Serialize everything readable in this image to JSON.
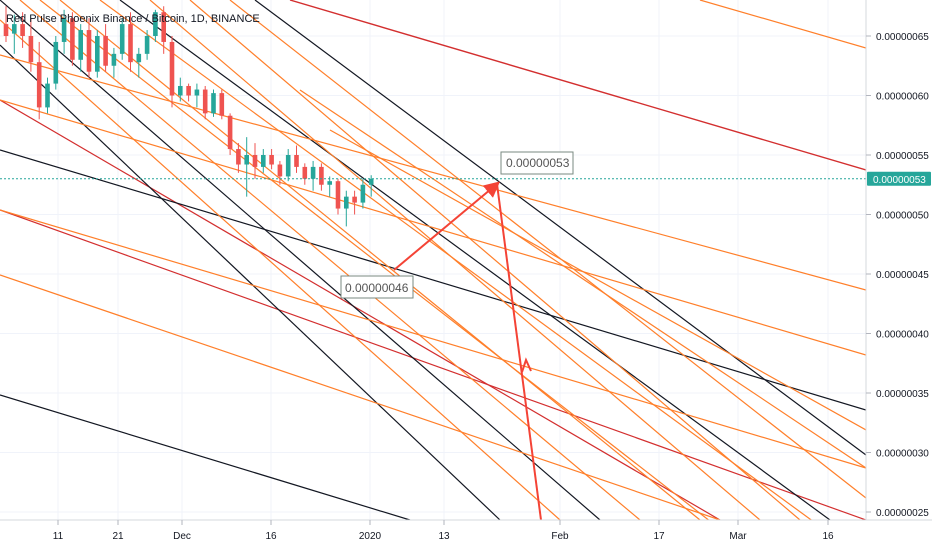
{
  "chart_data": {
    "type": "candlestick",
    "title": "Red Pulse Phoenix Binance / Bitcoin, 1D, BINANCE",
    "y_ticks": [
      "0.00000065",
      "0.00000060",
      "0.00000055",
      "0.00000050",
      "0.00000045",
      "0.00000040",
      "0.00000035",
      "0.00000030",
      "0.00000025"
    ],
    "y_tick_values": [
      65,
      60,
      55,
      50,
      45,
      40,
      35,
      30,
      25
    ],
    "x_ticks": [
      "11",
      "21",
      "Dec",
      "16",
      "2020",
      "13",
      "Feb",
      "17",
      "Mar",
      "16"
    ],
    "ylim": [
      25,
      68
    ],
    "current_price": "0.00000053",
    "current_price_value": 53,
    "annotations": [
      {
        "text": "0.00000053",
        "price": 53
      },
      {
        "text": "0.00000046",
        "price": 46
      }
    ],
    "candles": [
      {
        "o": 66.0,
        "h": 67.5,
        "l": 64.5,
        "c": 65.0,
        "up": false
      },
      {
        "o": 65.2,
        "h": 66.8,
        "l": 63.5,
        "c": 66.0,
        "up": true
      },
      {
        "o": 66.0,
        "h": 67.0,
        "l": 64.0,
        "c": 65.0,
        "up": false
      },
      {
        "o": 65.0,
        "h": 66.5,
        "l": 62.0,
        "c": 62.8,
        "up": false
      },
      {
        "o": 62.8,
        "h": 64.5,
        "l": 58.0,
        "c": 59.0,
        "up": false
      },
      {
        "o": 59.0,
        "h": 61.5,
        "l": 58.5,
        "c": 61.0,
        "up": true
      },
      {
        "o": 61.0,
        "h": 65.0,
        "l": 60.5,
        "c": 64.5,
        "up": true
      },
      {
        "o": 64.5,
        "h": 67.2,
        "l": 63.5,
        "c": 66.5,
        "up": true
      },
      {
        "o": 66.5,
        "h": 67.0,
        "l": 62.5,
        "c": 63.0,
        "up": false
      },
      {
        "o": 63.0,
        "h": 66.0,
        "l": 62.0,
        "c": 65.5,
        "up": true
      },
      {
        "o": 65.5,
        "h": 66.5,
        "l": 61.5,
        "c": 62.0,
        "up": false
      },
      {
        "o": 62.0,
        "h": 65.5,
        "l": 61.5,
        "c": 65.0,
        "up": true
      },
      {
        "o": 65.0,
        "h": 66.0,
        "l": 62.0,
        "c": 62.5,
        "up": false
      },
      {
        "o": 62.5,
        "h": 64.0,
        "l": 61.5,
        "c": 63.5,
        "up": true
      },
      {
        "o": 63.5,
        "h": 66.5,
        "l": 63.0,
        "c": 66.0,
        "up": true
      },
      {
        "o": 66.0,
        "h": 67.0,
        "l": 62.0,
        "c": 62.8,
        "up": false
      },
      {
        "o": 62.8,
        "h": 64.0,
        "l": 61.5,
        "c": 63.5,
        "up": true
      },
      {
        "o": 63.5,
        "h": 65.5,
        "l": 63.0,
        "c": 65.0,
        "up": true
      },
      {
        "o": 65.0,
        "h": 67.2,
        "l": 64.5,
        "c": 67.0,
        "up": true
      },
      {
        "o": 67.0,
        "h": 67.5,
        "l": 63.5,
        "c": 64.5,
        "up": false
      },
      {
        "o": 64.5,
        "h": 65.0,
        "l": 59.0,
        "c": 60.0,
        "up": false
      },
      {
        "o": 60.0,
        "h": 61.5,
        "l": 59.5,
        "c": 60.8,
        "up": true
      },
      {
        "o": 60.8,
        "h": 61.0,
        "l": 59.5,
        "c": 60.0,
        "up": false
      },
      {
        "o": 60.0,
        "h": 61.0,
        "l": 59.0,
        "c": 60.5,
        "up": true
      },
      {
        "o": 60.5,
        "h": 60.8,
        "l": 58.0,
        "c": 58.5,
        "up": false
      },
      {
        "o": 58.5,
        "h": 60.5,
        "l": 58.2,
        "c": 60.2,
        "up": true
      },
      {
        "o": 60.2,
        "h": 60.5,
        "l": 58.0,
        "c": 58.3,
        "up": false
      },
      {
        "o": 58.3,
        "h": 58.5,
        "l": 55.0,
        "c": 55.5,
        "up": false
      },
      {
        "o": 55.5,
        "h": 56.0,
        "l": 53.5,
        "c": 54.2,
        "up": false
      },
      {
        "o": 54.2,
        "h": 56.5,
        "l": 51.5,
        "c": 55.0,
        "up": true
      },
      {
        "o": 55.0,
        "h": 56.0,
        "l": 53.0,
        "c": 54.0,
        "up": false
      },
      {
        "o": 54.0,
        "h": 55.5,
        "l": 53.5,
        "c": 55.0,
        "up": true
      },
      {
        "o": 55.0,
        "h": 55.5,
        "l": 53.8,
        "c": 54.2,
        "up": false
      },
      {
        "o": 54.2,
        "h": 54.5,
        "l": 52.5,
        "c": 53.2,
        "up": false
      },
      {
        "o": 53.2,
        "h": 55.5,
        "l": 52.8,
        "c": 55.0,
        "up": true
      },
      {
        "o": 55.0,
        "h": 55.8,
        "l": 53.5,
        "c": 54.0,
        "up": false
      },
      {
        "o": 54.0,
        "h": 54.3,
        "l": 52.5,
        "c": 53.0,
        "up": false
      },
      {
        "o": 53.0,
        "h": 54.5,
        "l": 52.0,
        "c": 54.0,
        "up": true
      },
      {
        "o": 54.0,
        "h": 54.3,
        "l": 52.0,
        "c": 52.5,
        "up": false
      },
      {
        "o": 52.5,
        "h": 53.2,
        "l": 51.5,
        "c": 52.8,
        "up": true
      },
      {
        "o": 52.8,
        "h": 53.0,
        "l": 50.0,
        "c": 50.5,
        "up": false
      },
      {
        "o": 50.5,
        "h": 52.0,
        "l": 49.0,
        "c": 51.5,
        "up": true
      },
      {
        "o": 51.5,
        "h": 52.0,
        "l": 50.0,
        "c": 51.0,
        "up": false
      },
      {
        "o": 51.0,
        "h": 53.0,
        "l": 50.5,
        "c": 52.5,
        "up": true
      },
      {
        "o": 52.5,
        "h": 53.3,
        "l": 51.5,
        "c": 53.0,
        "up": true
      }
    ],
    "colors": {
      "up": "#26a69a",
      "down": "#ef5350",
      "orange_lines": "#ff7f2a",
      "black_lines": "#131722",
      "red_lines": "#d32f2f",
      "arrow": "#f44336",
      "price_tag": "#26a69a",
      "price_line": "#26a69a"
    }
  }
}
